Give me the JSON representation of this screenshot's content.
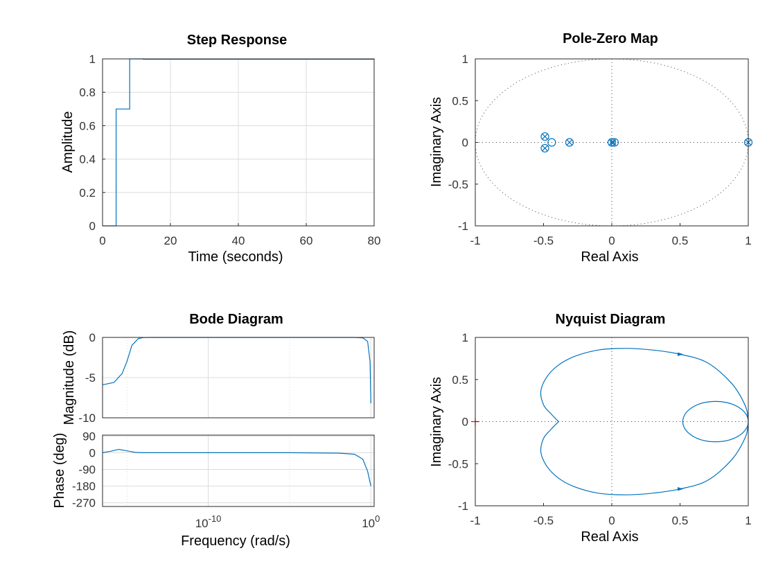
{
  "chart_data": [
    {
      "id": "step",
      "type": "line",
      "title": "Step Response",
      "xlabel": "Time (seconds)",
      "ylabel": "Amplitude",
      "xlim": [
        0,
        80
      ],
      "ylim": [
        0,
        1
      ],
      "xticks": [
        0,
        20,
        40,
        60,
        80
      ],
      "yticks": [
        0,
        0.2,
        0.4,
        0.6,
        0.8,
        1
      ],
      "xtick_labels": [
        "0",
        "20",
        "40",
        "60",
        "80"
      ],
      "ytick_labels": [
        "0",
        "0.2",
        "0.4",
        "0.6",
        "0.8",
        "1"
      ],
      "grid": true,
      "series": [
        {
          "x": [
            0,
            4,
            4,
            8,
            8,
            12,
            12,
            80
          ],
          "y": [
            0,
            0,
            0.7,
            0.7,
            1.0,
            1.0,
            0.998,
            0.998
          ]
        }
      ]
    },
    {
      "id": "pzmap",
      "type": "scatter",
      "title": "Pole-Zero Map",
      "xlabel": "Real Axis",
      "ylabel": "Imaginary Axis",
      "xlim": [
        -1,
        1
      ],
      "ylim": [
        -1,
        1
      ],
      "xticks": [
        -1,
        -0.5,
        0,
        0.5,
        1
      ],
      "yticks": [
        -1,
        -0.5,
        0,
        0.5,
        1
      ],
      "xtick_labels": [
        "-1",
        "-0.5",
        "0",
        "0.5",
        "1"
      ],
      "ytick_labels": [
        "-1",
        "-0.5",
        "0",
        "0.5",
        "1"
      ],
      "grid": false,
      "unit_circle": true,
      "poles": [
        [
          -0.49,
          0.07
        ],
        [
          -0.49,
          -0.07
        ],
        [
          -0.31,
          0
        ],
        [
          0,
          0
        ],
        [
          0.01,
          0
        ],
        [
          1,
          0
        ]
      ],
      "zeros": [
        [
          -0.49,
          0.07
        ],
        [
          -0.49,
          -0.07
        ],
        [
          -0.44,
          0
        ],
        [
          -0.31,
          0
        ],
        [
          0,
          0
        ],
        [
          0.02,
          0
        ],
        [
          1,
          0
        ]
      ]
    },
    {
      "id": "bode",
      "type": "line",
      "title": "Bode Diagram",
      "xlabel": "Frequency  (rad/s)",
      "ylabel_mag": "Magnitude (dB)",
      "ylabel_phase": "Phase (deg)",
      "xscale": "log",
      "xlim_exp": [
        -16.5,
        0.2
      ],
      "xtick_exps": [
        -10,
        0
      ],
      "xtick_label_base": "10",
      "xtick_label_exps": [
        "-10",
        "0"
      ],
      "mag_ylim": [
        -10,
        0
      ],
      "mag_yticks": [
        -10,
        -5,
        0
      ],
      "mag_ytick_labels": [
        "-10",
        "-5",
        "0"
      ],
      "phase_ylim": [
        -290,
        95
      ],
      "phase_yticks": [
        -270,
        -180,
        -90,
        0,
        90
      ],
      "phase_ytick_labels": [
        "-270",
        "-180",
        "-90",
        "0",
        "90"
      ],
      "grid": true,
      "magnitude": {
        "x_exp": [
          -16.5,
          -15.8,
          -15.3,
          -15.0,
          -14.7,
          -14.3,
          -14.0,
          -13.5,
          -13.0,
          -10,
          -5,
          -1,
          -0.5,
          -0.2,
          -0.05,
          0.0
        ],
        "y": [
          -5.9,
          -5.6,
          -4.5,
          -3.0,
          -1.0,
          -0.15,
          -0.02,
          0,
          0,
          0,
          0,
          0,
          -0.05,
          -0.5,
          -3,
          -8.2
        ]
      },
      "phase": {
        "x_exp": [
          -16.5,
          -16.0,
          -15.5,
          -15.0,
          -14.5,
          -14.0,
          -13.0,
          -10,
          -5,
          -2,
          -1,
          -0.5,
          -0.2,
          0.0
        ],
        "y": [
          0,
          8,
          18,
          10,
          2,
          0,
          0,
          0,
          0,
          -2,
          -8,
          -35,
          -100,
          -180
        ]
      }
    },
    {
      "id": "nyquist",
      "type": "line",
      "title": "Nyquist Diagram",
      "xlabel": "Real Axis",
      "ylabel": "Imaginary Axis",
      "xlim": [
        -1,
        1
      ],
      "ylim": [
        -1,
        1
      ],
      "xticks": [
        -1,
        -0.5,
        0,
        0.5,
        1
      ],
      "yticks": [
        -1,
        -0.5,
        0,
        0.5,
        1
      ],
      "xtick_labels": [
        "-1",
        "-0.5",
        "0",
        "0.5",
        "1"
      ],
      "ytick_labels": [
        "-1",
        "-0.5",
        "0",
        "0.5",
        "1"
      ],
      "grid": false,
      "critical_point": [
        -1,
        0
      ],
      "critical_color": "#ff0000",
      "curve": {
        "x": [
          1,
          0.98,
          0.88,
          0.7,
          0.5,
          0.3,
          0.1,
          -0.1,
          -0.28,
          -0.4,
          -0.48,
          -0.52,
          -0.5,
          -0.45,
          -0.39
        ],
        "y": [
          0,
          0.18,
          0.45,
          0.7,
          0.8,
          0.85,
          0.87,
          0.85,
          0.77,
          0.66,
          0.52,
          0.36,
          0.2,
          0.1,
          0
        ]
      },
      "inner_loop": {
        "center": [
          0.76,
          0
        ],
        "radius": 0.24
      },
      "arrows": [
        [
          0.5,
          0.8
        ],
        [
          0.5,
          -0.8
        ]
      ]
    }
  ],
  "colors": {
    "line": "#0072bd",
    "axes": "#262626",
    "grid": "#dcdcdc"
  }
}
